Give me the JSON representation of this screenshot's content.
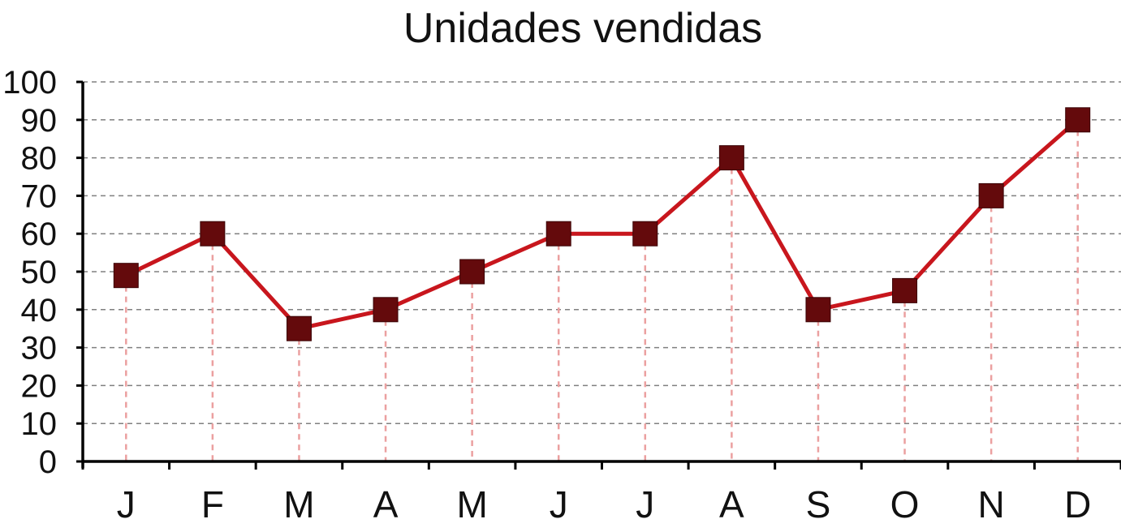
{
  "chart_data": {
    "type": "line",
    "title": "Unidades vendidas",
    "xlabel": "",
    "ylabel": "",
    "categories": [
      "J",
      "F",
      "M",
      "A",
      "M",
      "J",
      "J",
      "A",
      "S",
      "O",
      "N",
      "D"
    ],
    "series": [
      {
        "values": [
          49,
          60,
          35,
          40,
          50,
          60,
          60,
          80,
          40,
          45,
          70,
          90
        ]
      }
    ],
    "ylim": [
      0,
      100
    ],
    "yticks": [
      0,
      10,
      20,
      30,
      40,
      50,
      60,
      70,
      80,
      90,
      100
    ],
    "grid": "horizontal dashed",
    "colors": {
      "line": "#c8161d",
      "marker": "#640a0c",
      "drop_line": "#eba0a0",
      "grid": "#808080",
      "axis": "#000000"
    }
  }
}
